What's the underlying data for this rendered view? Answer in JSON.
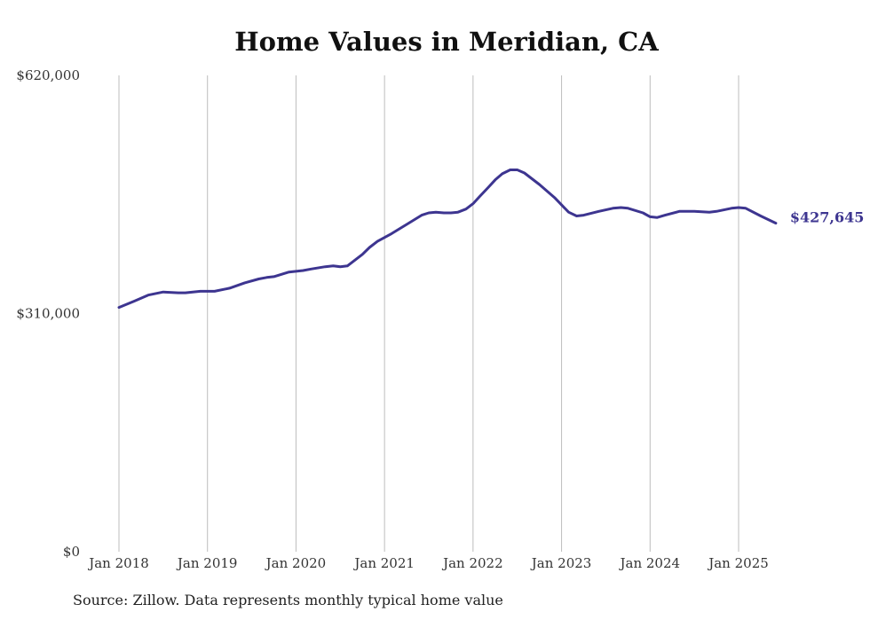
{
  "chart_data": {
    "type": "line",
    "title": "Home Values in Meridian, CA",
    "source": "Source: Zillow. Data represents monthly typical home value",
    "ylim": [
      0,
      620000
    ],
    "y_ticks": [
      "$0",
      "$310,000",
      "$620,000"
    ],
    "y_tick_values": [
      0,
      310000,
      620000
    ],
    "x_ticks": [
      "Jan 2018",
      "Jan 2019",
      "Jan 2020",
      "Jan 2021",
      "Jan 2022",
      "Jan 2023",
      "Jan 2024",
      "Jan 2025"
    ],
    "x_tick_values": [
      2018,
      2019,
      2020,
      2021,
      2022,
      2023,
      2024,
      2025
    ],
    "grid": "vertical",
    "series_color": "#3d3590",
    "end_label": "$427,645",
    "series": [
      {
        "x": [
          2018.0,
          2018.17,
          2018.33,
          2018.5,
          2018.67,
          2018.75,
          2018.92,
          2019.08,
          2019.25,
          2019.42,
          2019.58,
          2019.67,
          2019.75,
          2019.92,
          2020.08,
          2020.17,
          2020.33,
          2020.42,
          2020.5,
          2020.58,
          2020.75,
          2020.83,
          2020.92,
          2021.08,
          2021.25,
          2021.42,
          2021.5,
          2021.58,
          2021.67,
          2021.75,
          2021.83,
          2021.92,
          2022.0,
          2022.08,
          2022.17,
          2022.25,
          2022.33,
          2022.42,
          2022.5,
          2022.58,
          2022.75,
          2022.92,
          2023.08,
          2023.17,
          2023.25,
          2023.42,
          2023.58,
          2023.67,
          2023.75,
          2023.92,
          2024.0,
          2024.08,
          2024.17,
          2024.33,
          2024.5,
          2024.67,
          2024.75,
          2024.92,
          2025.0,
          2025.08,
          2025.25,
          2025.42
        ],
        "y": [
          318000,
          326000,
          334000,
          338000,
          337000,
          337000,
          339000,
          339000,
          343000,
          350000,
          355000,
          357000,
          358000,
          364000,
          366000,
          368000,
          371000,
          372000,
          371000,
          372000,
          387000,
          396000,
          404000,
          414000,
          426000,
          438000,
          441000,
          442000,
          441000,
          441000,
          442000,
          446000,
          453000,
          463000,
          474000,
          484000,
          492000,
          497000,
          497000,
          493000,
          478000,
          461000,
          442000,
          437000,
          438000,
          443000,
          447000,
          448000,
          447000,
          441000,
          436000,
          435000,
          438000,
          443000,
          443000,
          442000,
          443000,
          447000,
          448000,
          447000,
          437000,
          427645
        ]
      }
    ]
  }
}
